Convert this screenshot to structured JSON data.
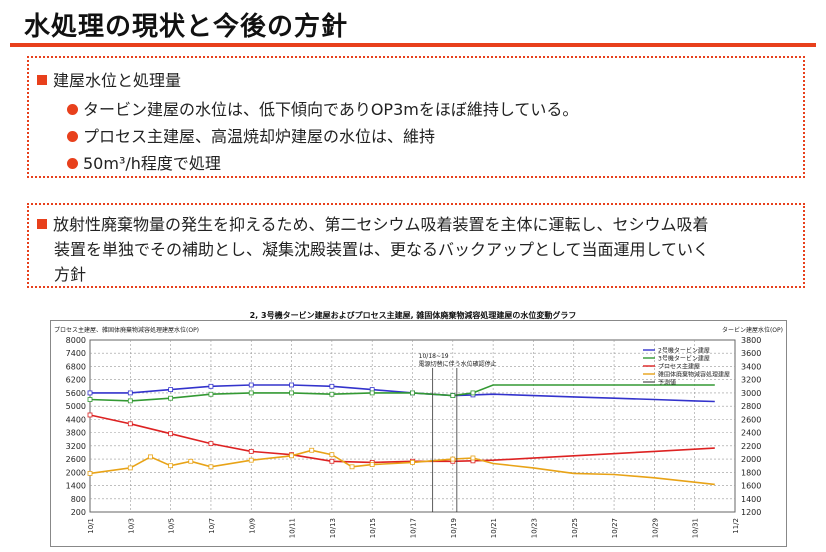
{
  "slide": {
    "title": "水処理の現状と今後の方針",
    "box1": {
      "heading": "建屋水位と処理量",
      "bullets": [
        "タービン建屋の水位は、低下傾向でありOP3mをほぼ維持している。",
        "プロセス主建屋、高温焼却炉建屋の水位は、維持",
        "50m³/h程度で処理"
      ]
    },
    "box2": {
      "lines": [
        "放射性廃棄物量の発生を抑えるため、第二セシウム吸着装置を主体に運転し、セシウム吸着",
        "装置を単独でその補助とし、凝集沈殿装置は、更なるバックアップとして当面運用していく",
        "方針"
      ]
    }
  },
  "colors": {
    "accent": "#e8401c"
  },
  "chart_data": {
    "type": "line",
    "title": "2, 3号機タービン建屋およびプロセス主建屋, 雑固体廃棄物減容処理建屋の水位変動グラフ",
    "left_axis_label": "プロセス主建屋、雑固体廃棄物減容処理建屋水位(OP)",
    "right_axis_label": "タービン建屋水位(OP)",
    "ylim_left": [
      200,
      8000
    ],
    "ylim_right": [
      1200,
      3800
    ],
    "yticks_left": [
      200,
      800,
      1400,
      2000,
      2600,
      3200,
      3800,
      4400,
      5000,
      5600,
      6200,
      6800,
      7400,
      8000
    ],
    "yticks_right": [
      1200,
      1400,
      1600,
      1800,
      2000,
      2200,
      2400,
      2600,
      2800,
      3000,
      3200,
      3400,
      3600,
      3800
    ],
    "xlim": [
      0,
      32
    ],
    "x_tick_labels": [
      "10/1",
      "10/3",
      "10/5",
      "10/7",
      "10/9",
      "10/11",
      "10/13",
      "10/15",
      "10/17",
      "10/19",
      "10/21",
      "10/23",
      "10/25",
      "10/27",
      "10/29",
      "10/31",
      "11/2"
    ],
    "annotation": [
      "10/18~19",
      "電源切替に伴う水位確認停止"
    ],
    "series": [
      {
        "name": "2号機タービン建屋",
        "color": "#3333cc",
        "axis": "right",
        "x": [
          0,
          2,
          4,
          6,
          8,
          10,
          12,
          14,
          16,
          18,
          19,
          20,
          22,
          24,
          26,
          28,
          30,
          31
        ],
        "y": [
          3000,
          3000,
          3050,
          3100,
          3120,
          3120,
          3100,
          3050,
          3000,
          2960,
          2970,
          2980,
          2960,
          2940,
          2920,
          2900,
          2880,
          2870
        ]
      },
      {
        "name": "3号機タービン建屋",
        "color": "#339933",
        "axis": "right",
        "x": [
          0,
          2,
          4,
          6,
          8,
          10,
          12,
          14,
          16,
          18,
          19,
          20,
          22,
          24,
          26,
          28,
          30,
          31
        ],
        "y": [
          2900,
          2880,
          2920,
          2980,
          3000,
          3000,
          2980,
          3000,
          3000,
          2960,
          3000,
          3120,
          3120,
          3120,
          3120,
          3120,
          3120,
          3120
        ]
      },
      {
        "name": "プロセス主建屋",
        "color": "#dd2222",
        "axis": "left",
        "x": [
          0,
          2,
          4,
          6,
          8,
          10,
          12,
          14,
          16,
          18,
          19,
          20,
          24,
          28,
          31
        ],
        "y": [
          4600,
          4200,
          3750,
          3300,
          2950,
          2800,
          2500,
          2450,
          2500,
          2500,
          2520,
          2550,
          2750,
          2950,
          3100
        ]
      },
      {
        "name": "雑固体廃棄物減容処理建屋",
        "color": "#e8a317",
        "axis": "left",
        "x": [
          0,
          2,
          3,
          4,
          5,
          6,
          8,
          10,
          11,
          12,
          13,
          14,
          16,
          18,
          19,
          20,
          22,
          24,
          26,
          28,
          30,
          31
        ],
        "y": [
          1950,
          2200,
          2700,
          2300,
          2500,
          2250,
          2550,
          2750,
          3000,
          2800,
          2250,
          2350,
          2450,
          2600,
          2650,
          2400,
          2200,
          1950,
          1900,
          1750,
          1550,
          1450
        ]
      }
    ],
    "legend": [
      {
        "label": "2号機タービン建屋",
        "color": "#3333cc"
      },
      {
        "label": "3号機タービン建屋",
        "color": "#339933"
      },
      {
        "label": "プロセス主建屋",
        "color": "#dd2222"
      },
      {
        "label": "雑固体廃棄物減容処理建屋",
        "color": "#e8a317"
      },
      {
        "label": "予測値",
        "color": "#666666"
      }
    ],
    "legend_position": "top-right",
    "grid": true
  }
}
